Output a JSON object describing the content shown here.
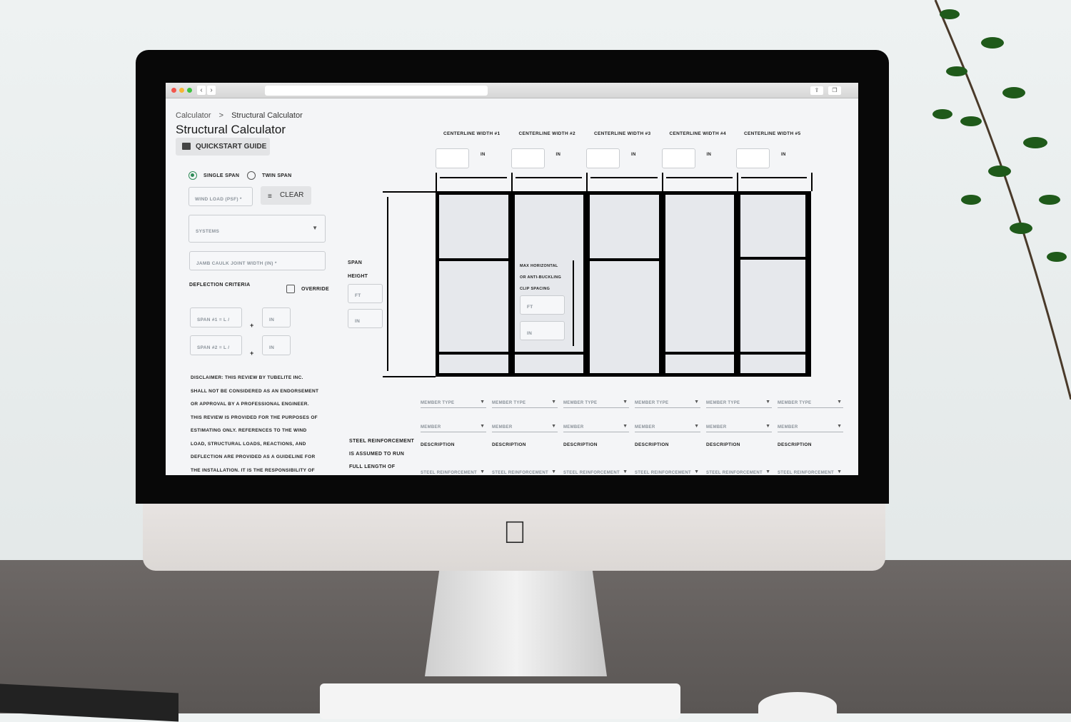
{
  "browser": {
    "back": "‹",
    "forward": "›",
    "share_icon": "share-icon",
    "tabs_icon": "tabs-icon"
  },
  "breadcrumb": {
    "parent": "Calculator",
    "sep": ">",
    "current": "Structural Calculator"
  },
  "title": "Structural Calculator",
  "quickstart_label": "QUICKSTART GUIDE",
  "span_options": [
    {
      "label": "SINGLE SPAN",
      "selected": true
    },
    {
      "label": "TWIN SPAN",
      "selected": false
    }
  ],
  "wind_load_placeholder": "WIND LOAD (PSF) *",
  "clear_label": "CLEAR",
  "systems_placeholder": "SYSTEMS",
  "jamb_placeholder": "JAMB CAULK JOINT WIDTH (IN) *",
  "deflection_label": "DEFLECTION CRITERIA",
  "override_label": "OVERRIDE",
  "span1_placeholder": "SPAN #1 = L /",
  "span2_placeholder": "SPAN #2 = L /",
  "in_placeholder": "IN",
  "ft_placeholder": "FT",
  "plus": "+",
  "disclaimer": [
    "DISCLAIMER: THIS REVIEW BY TUBELITE INC.",
    "SHALL NOT BE CONSIDERED AS AN ENDORSEMENT",
    "OR APPROVAL BY A PROFESSIONAL ENGINEER.",
    "THIS REVIEW IS PROVIDED FOR THE PURPOSES OF",
    "ESTIMATING ONLY. REFERENCES TO THE WIND",
    "LOAD, STRUCTURAL LOADS, REACTIONS, AND",
    "DEFLECTION ARE PROVIDED AS A GUIDELINE FOR",
    "THE INSTALLATION. IT IS THE RESPONSIBILITY OF"
  ],
  "span_height": [
    "SPAN",
    "HEIGHT"
  ],
  "centerline_widths": [
    "CENTERLINE WIDTH #1",
    "CENTERLINE WIDTH #2",
    "CENTERLINE WIDTH #3",
    "CENTERLINE WIDTH #4",
    "CENTERLINE WIDTH #5"
  ],
  "clip_spacing": [
    "MAX HORIZONTAL",
    "OR ANTI-BUCKLING",
    "CLIP SPACING"
  ],
  "steel_note": [
    "STEEL REINFORCEMENT",
    "IS ASSUMED TO RUN",
    "FULL LENGTH OF"
  ],
  "member_type": "MEMBER TYPE",
  "member": "MEMBER",
  "description": "DESCRIPTION",
  "steel_reinforcement": "STEEL REINFORCEMENT",
  "colors": {
    "accent": "#2e8b57",
    "frame": "#000000",
    "glass": "#e6e8ec"
  }
}
